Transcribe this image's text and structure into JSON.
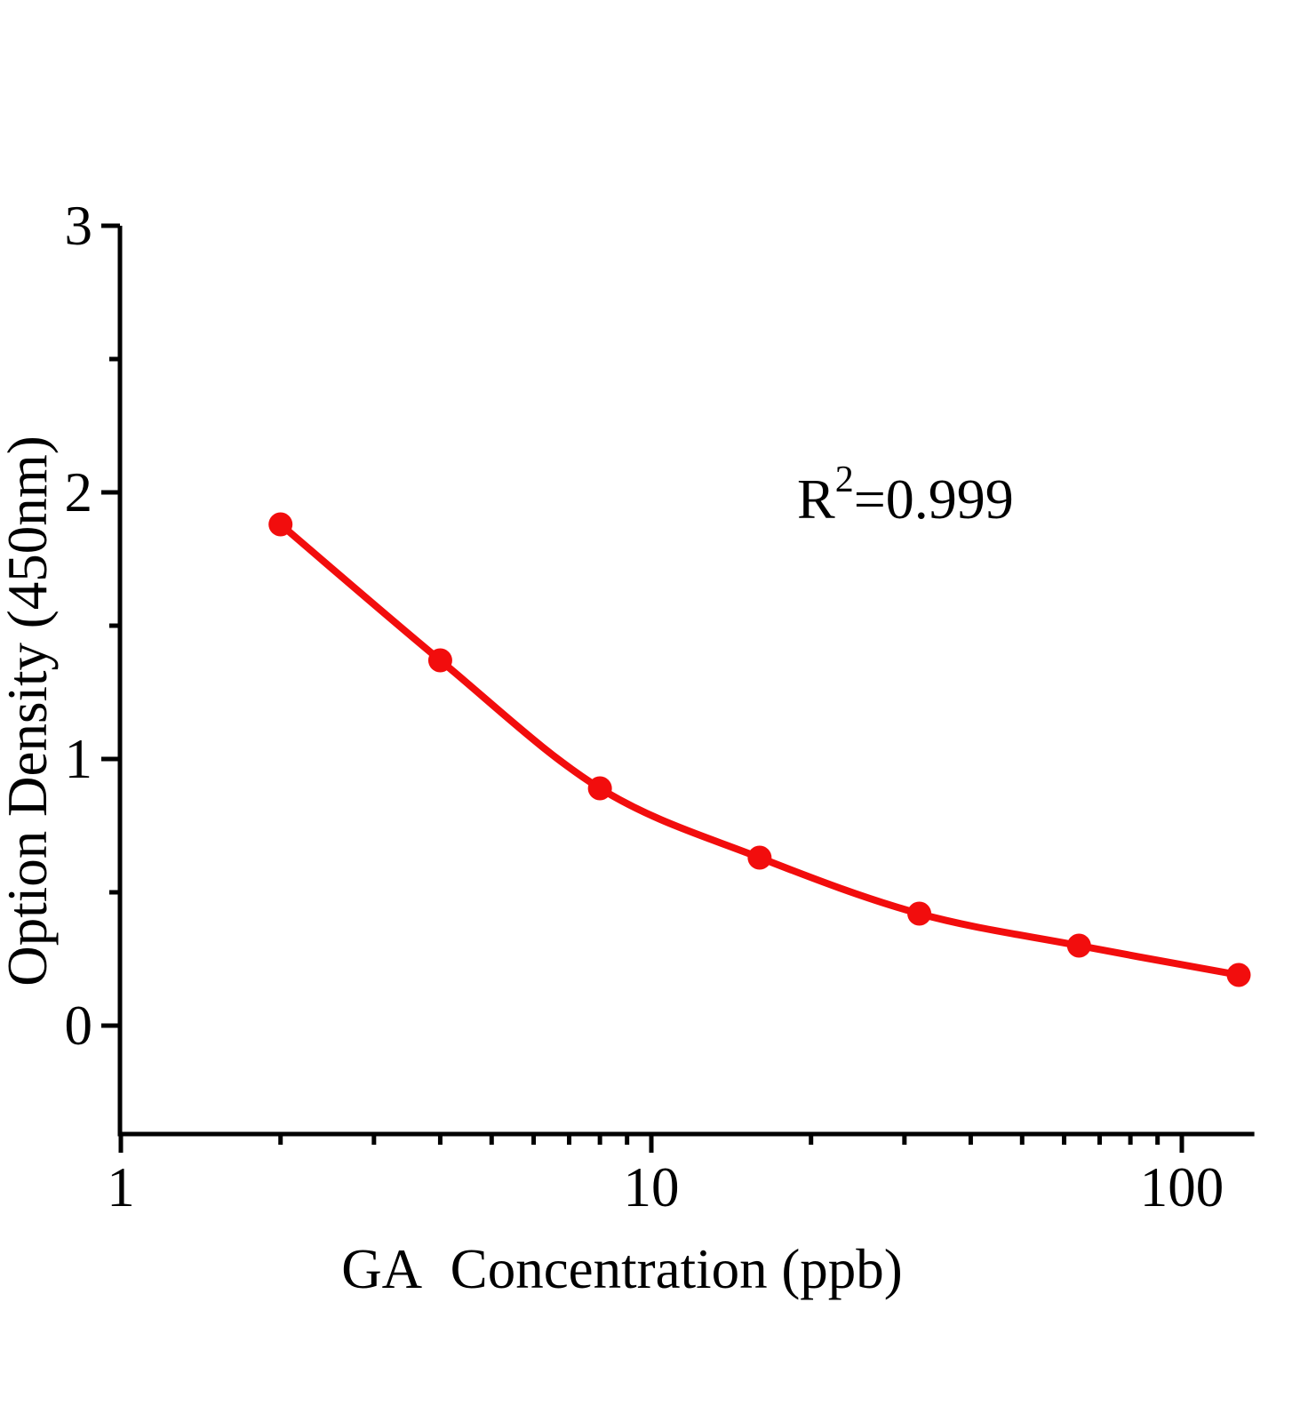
{
  "chart_data": {
    "type": "scatter",
    "title": "",
    "xlabel": "GA  Concentration (ppb)",
    "ylabel": "Option Density (450nm)",
    "x_scale": "log",
    "x": [
      2,
      4,
      8,
      16,
      32,
      64,
      128
    ],
    "y": [
      1.88,
      1.37,
      0.89,
      0.63,
      0.42,
      0.3,
      0.19
    ],
    "x_major_ticks": [
      1,
      10,
      100
    ],
    "x_tick_labels": [
      "1",
      "10",
      "100"
    ],
    "x_minor_ticks": [
      2,
      3,
      4,
      5,
      6,
      7,
      8,
      9,
      20,
      30,
      40,
      50,
      60,
      70,
      80,
      90
    ],
    "y_major_ticks": [
      0,
      1,
      2,
      3
    ],
    "y_tick_labels": [
      "0",
      "1",
      "2",
      "3"
    ],
    "y_minor_ticks": [
      0.5,
      1.5,
      2.5
    ],
    "xlim": [
      1,
      137
    ],
    "ylim": [
      -0.41,
      3
    ],
    "grid": false,
    "legend": null,
    "annotation": {
      "base": "R",
      "superscript": "2",
      "rest": "=0.999"
    },
    "colors": {
      "point_color": "#f20d0d",
      "line_color": "#f20d0d",
      "axis_color": "#000000",
      "background": "#ffffff"
    }
  }
}
